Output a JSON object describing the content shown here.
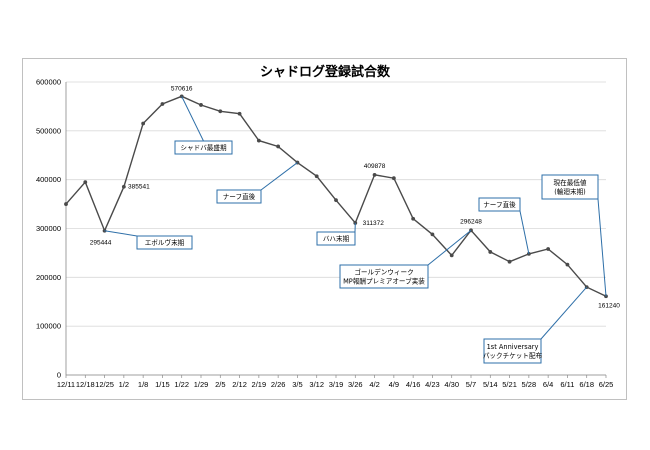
{
  "chart_data": {
    "type": "line",
    "title": "シャドログ登録試合数",
    "categories": [
      "12/11",
      "12/18",
      "12/25",
      "1/2",
      "1/8",
      "1/15",
      "1/22",
      "1/29",
      "2/5",
      "2/12",
      "2/19",
      "2/26",
      "3/5",
      "3/12",
      "3/19",
      "3/26",
      "4/2",
      "4/9",
      "4/16",
      "4/23",
      "4/30",
      "5/7",
      "5/14",
      "5/21",
      "5/28",
      "6/4",
      "6/11",
      "6/18",
      "6/25"
    ],
    "values": [
      350000,
      395000,
      295444,
      385541,
      515000,
      555000,
      570616,
      553000,
      540000,
      535000,
      480000,
      468000,
      435000,
      407000,
      358000,
      311372,
      409878,
      403000,
      320000,
      288000,
      245000,
      296248,
      252000,
      232000,
      248000,
      258000,
      226000,
      180000,
      161240
    ],
    "ylim": [
      0,
      600000
    ],
    "yticks": [
      "0",
      "100000",
      "200000",
      "300000",
      "400000",
      "500000",
      "600000"
    ],
    "grid": "horizontal",
    "data_labels": [
      {
        "index": 2,
        "text": "295444"
      },
      {
        "index": 3,
        "text": "385541"
      },
      {
        "index": 6,
        "text": "570616"
      },
      {
        "index": 15,
        "text": "311372"
      },
      {
        "index": 16,
        "text": "409878"
      },
      {
        "index": 21,
        "text": "296248"
      },
      {
        "index": 28,
        "text": "161240"
      }
    ],
    "annotations": [
      {
        "text": [
          "エボルヴ末期"
        ]
      },
      {
        "text": [
          "シャドバ最盛期"
        ]
      },
      {
        "text": [
          "ナーフ直後"
        ]
      },
      {
        "text": [
          "バハ末期"
        ]
      },
      {
        "text": [
          "ゴールデンウィーク",
          "MP報酬プレミアオーブ実装"
        ]
      },
      {
        "text": [
          "ナーフ直後"
        ]
      },
      {
        "text": [
          "現在最低値",
          "(輪廻末期)"
        ]
      },
      {
        "text": [
          "1st Anniversary",
          "パックチケット配布"
        ]
      }
    ],
    "colors": {
      "line": "#4a4a4a",
      "marker": "#4a4a4a",
      "grid": "#d9d9d9",
      "callout_border": "#2e6fa8",
      "callout_arrow": "#2e6fa8"
    }
  }
}
